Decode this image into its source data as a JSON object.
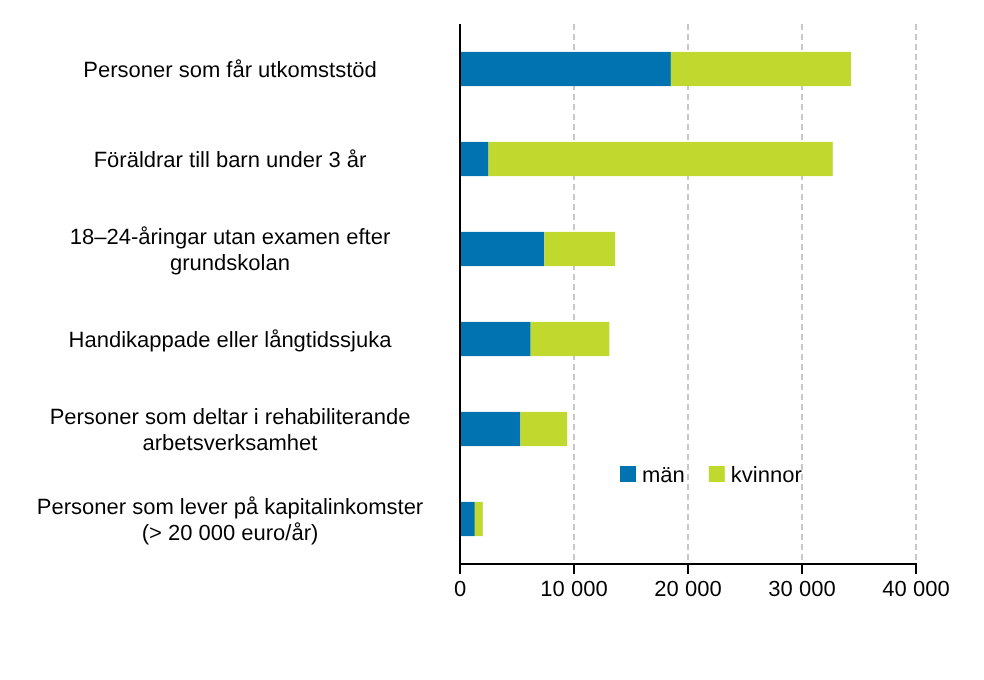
{
  "chart_data": {
    "type": "bar",
    "orientation": "horizontal",
    "stacked": true,
    "categories": [
      "Personer som får utkomststöd",
      "Föräldrar till barn under 3 år",
      "18–24-åringar utan examen efter grundskolan",
      "Handikappade eller långtidssjuka",
      "Personer som deltar i rehabiliterande arbetsverksamhet",
      "Personer som lever på kapitalinkomster (> 20 000 euro/år)"
    ],
    "series": [
      {
        "name": "män",
        "color": "#0073b0",
        "values": [
          18500,
          2500,
          7400,
          6200,
          5300,
          1300
        ]
      },
      {
        "name": "kvinnor",
        "color": "#c1d82f",
        "values": [
          15800,
          30200,
          6200,
          6900,
          4100,
          700
        ]
      }
    ],
    "xlim": [
      0,
      40000
    ],
    "xticks": [
      {
        "value": 0,
        "label": "0"
      },
      {
        "value": 10000,
        "label": "10 000"
      },
      {
        "value": 20000,
        "label": "20 000"
      },
      {
        "value": 30000,
        "label": "30 000"
      },
      {
        "value": 40000,
        "label": "40 000"
      }
    ],
    "grid": "x",
    "legend": "bottom right"
  }
}
